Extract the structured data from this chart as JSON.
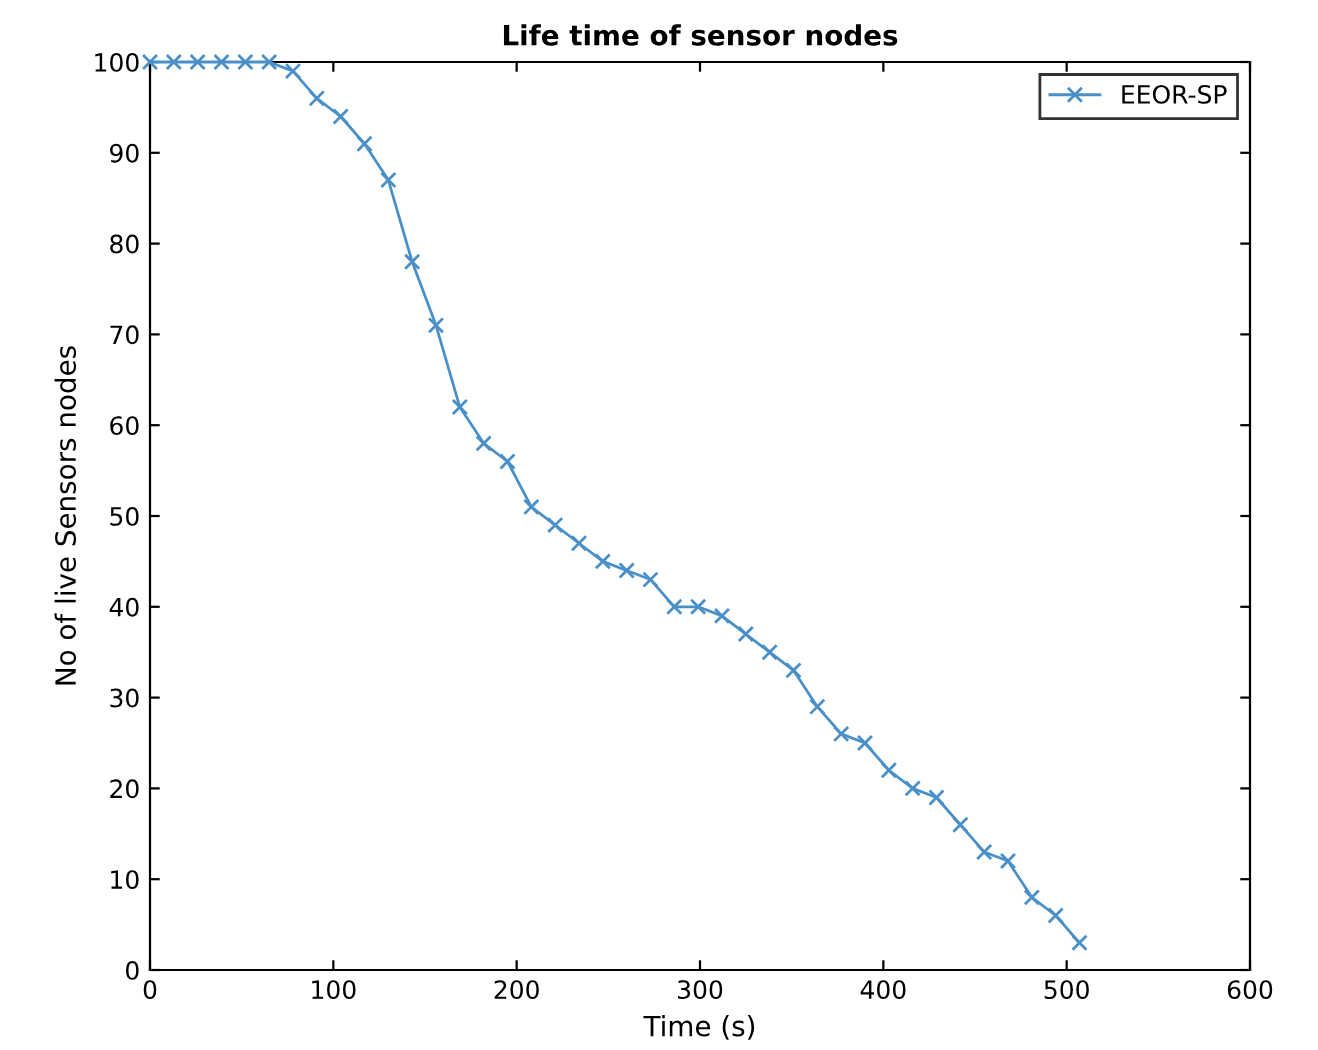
{
  "chart_data": {
    "type": "line",
    "title": "Life time of sensor nodes",
    "xlabel": "Time (s)",
    "ylabel": "No of live Sensors nodes",
    "x": [
      0,
      13,
      26,
      39,
      52,
      65,
      78,
      91,
      104,
      117,
      130,
      143,
      156,
      169,
      182,
      195,
      208,
      221,
      234,
      247,
      260,
      273,
      286,
      299,
      312,
      325,
      338,
      351,
      364,
      377,
      390,
      403,
      416,
      429,
      442,
      455,
      468,
      481,
      494,
      507
    ],
    "series": [
      {
        "name": "EEOR-SP",
        "color": "#4a90c8",
        "values": [
          100,
          100,
          100,
          100,
          100,
          100,
          99,
          96,
          94,
          91,
          87,
          78,
          71,
          62,
          58,
          56,
          51,
          49,
          47,
          45,
          44,
          43,
          40,
          40,
          39,
          37,
          35,
          33,
          29,
          26,
          25,
          22,
          20,
          19,
          16,
          13,
          12,
          8,
          6,
          3
        ]
      }
    ],
    "xlim": [
      0,
      600
    ],
    "ylim": [
      0,
      100
    ],
    "xticks": [
      0,
      100,
      200,
      300,
      400,
      500,
      600
    ],
    "yticks": [
      0,
      10,
      20,
      30,
      40,
      50,
      60,
      70,
      80,
      90,
      100
    ],
    "marker": "cross",
    "line_style": "solid",
    "grid": false,
    "legend": "top right"
  }
}
